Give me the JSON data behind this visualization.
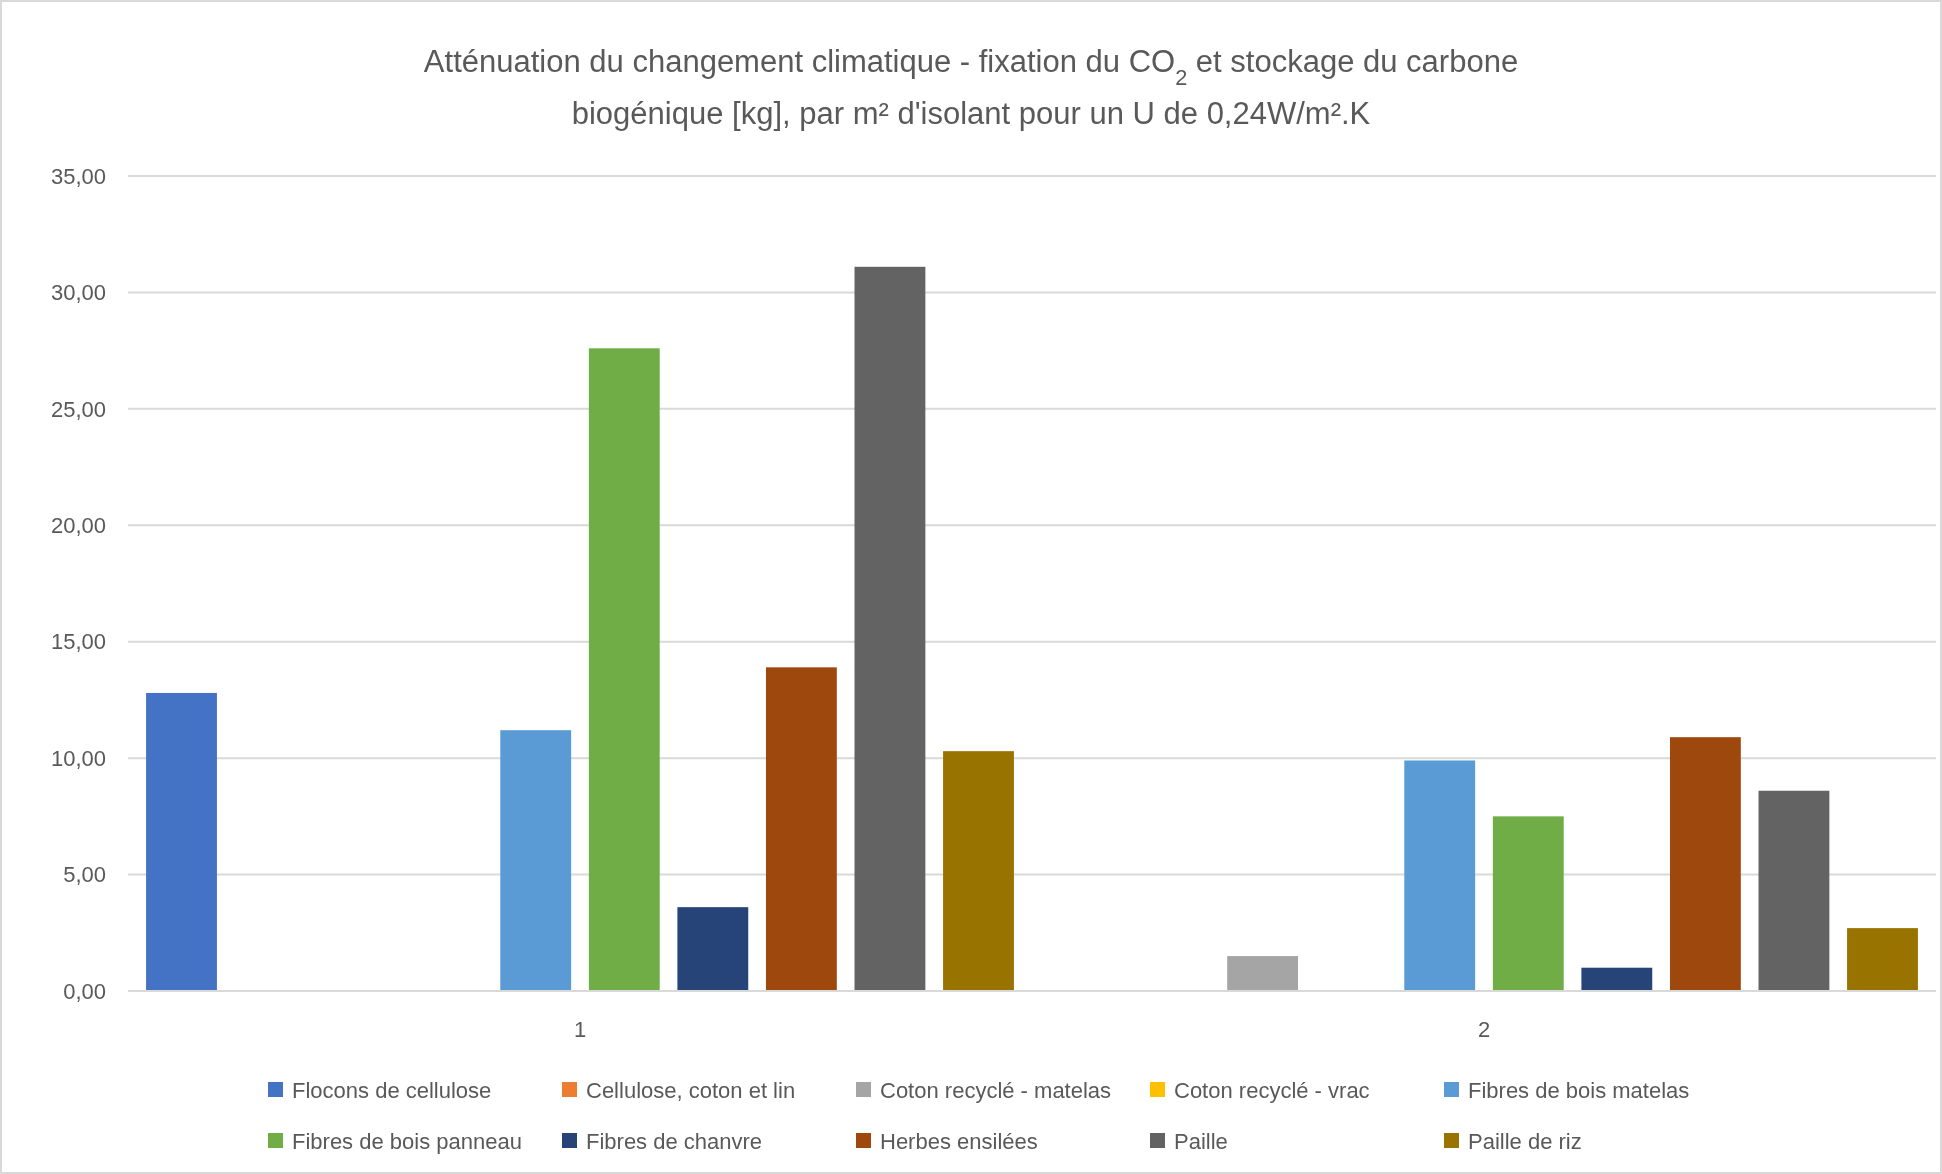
{
  "chart_data": {
    "type": "bar",
    "title": "Atténuation du changement climatique - fixation du CO$_{2}$ et stockage du carbone\nbiogénique [kg], par m² d'isolant pour un U de 0,24W/m².K",
    "categories": [
      "1",
      "2"
    ],
    "series": [
      {
        "name": "Flocons de cellulose",
        "color": "#4472c4",
        "values": [
          12.8,
          0
        ]
      },
      {
        "name": "Cellulose, coton et lin",
        "color": "#ed7d31",
        "values": [
          0,
          0
        ]
      },
      {
        "name": "Coton recyclé - matelas",
        "color": "#a5a5a5",
        "values": [
          0,
          1.5
        ]
      },
      {
        "name": "Coton recyclé - vrac",
        "color": "#ffc000",
        "values": [
          0,
          0
        ]
      },
      {
        "name": "Fibres de bois matelas",
        "color": "#5b9bd5",
        "values": [
          11.2,
          9.9
        ]
      },
      {
        "name": "Fibres de bois panneau",
        "color": "#70ad47",
        "values": [
          27.6,
          7.5
        ]
      },
      {
        "name": "Fibres de chanvre",
        "color": "#264478",
        "values": [
          3.6,
          1.0
        ]
      },
      {
        "name": "Herbes ensilées",
        "color": "#9e480e",
        "values": [
          13.9,
          10.9
        ]
      },
      {
        "name": "Paille",
        "color": "#636363",
        "values": [
          31.1,
          8.6
        ]
      },
      {
        "name": "Paille de riz",
        "color": "#997300",
        "values": [
          10.3,
          2.7
        ]
      }
    ],
    "ylim": [
      0,
      35
    ],
    "yticks": [
      {
        "value": 0,
        "label": "0,00"
      },
      {
        "value": 5,
        "label": "5,00"
      },
      {
        "value": 10,
        "label": "10,00"
      },
      {
        "value": 15,
        "label": "15,00"
      },
      {
        "value": 20,
        "label": "20,00"
      },
      {
        "value": 25,
        "label": "25,00"
      },
      {
        "value": 30,
        "label": "30,00"
      },
      {
        "value": 35,
        "label": "35,00"
      }
    ],
    "grid": "y",
    "legend": "bottom"
  }
}
